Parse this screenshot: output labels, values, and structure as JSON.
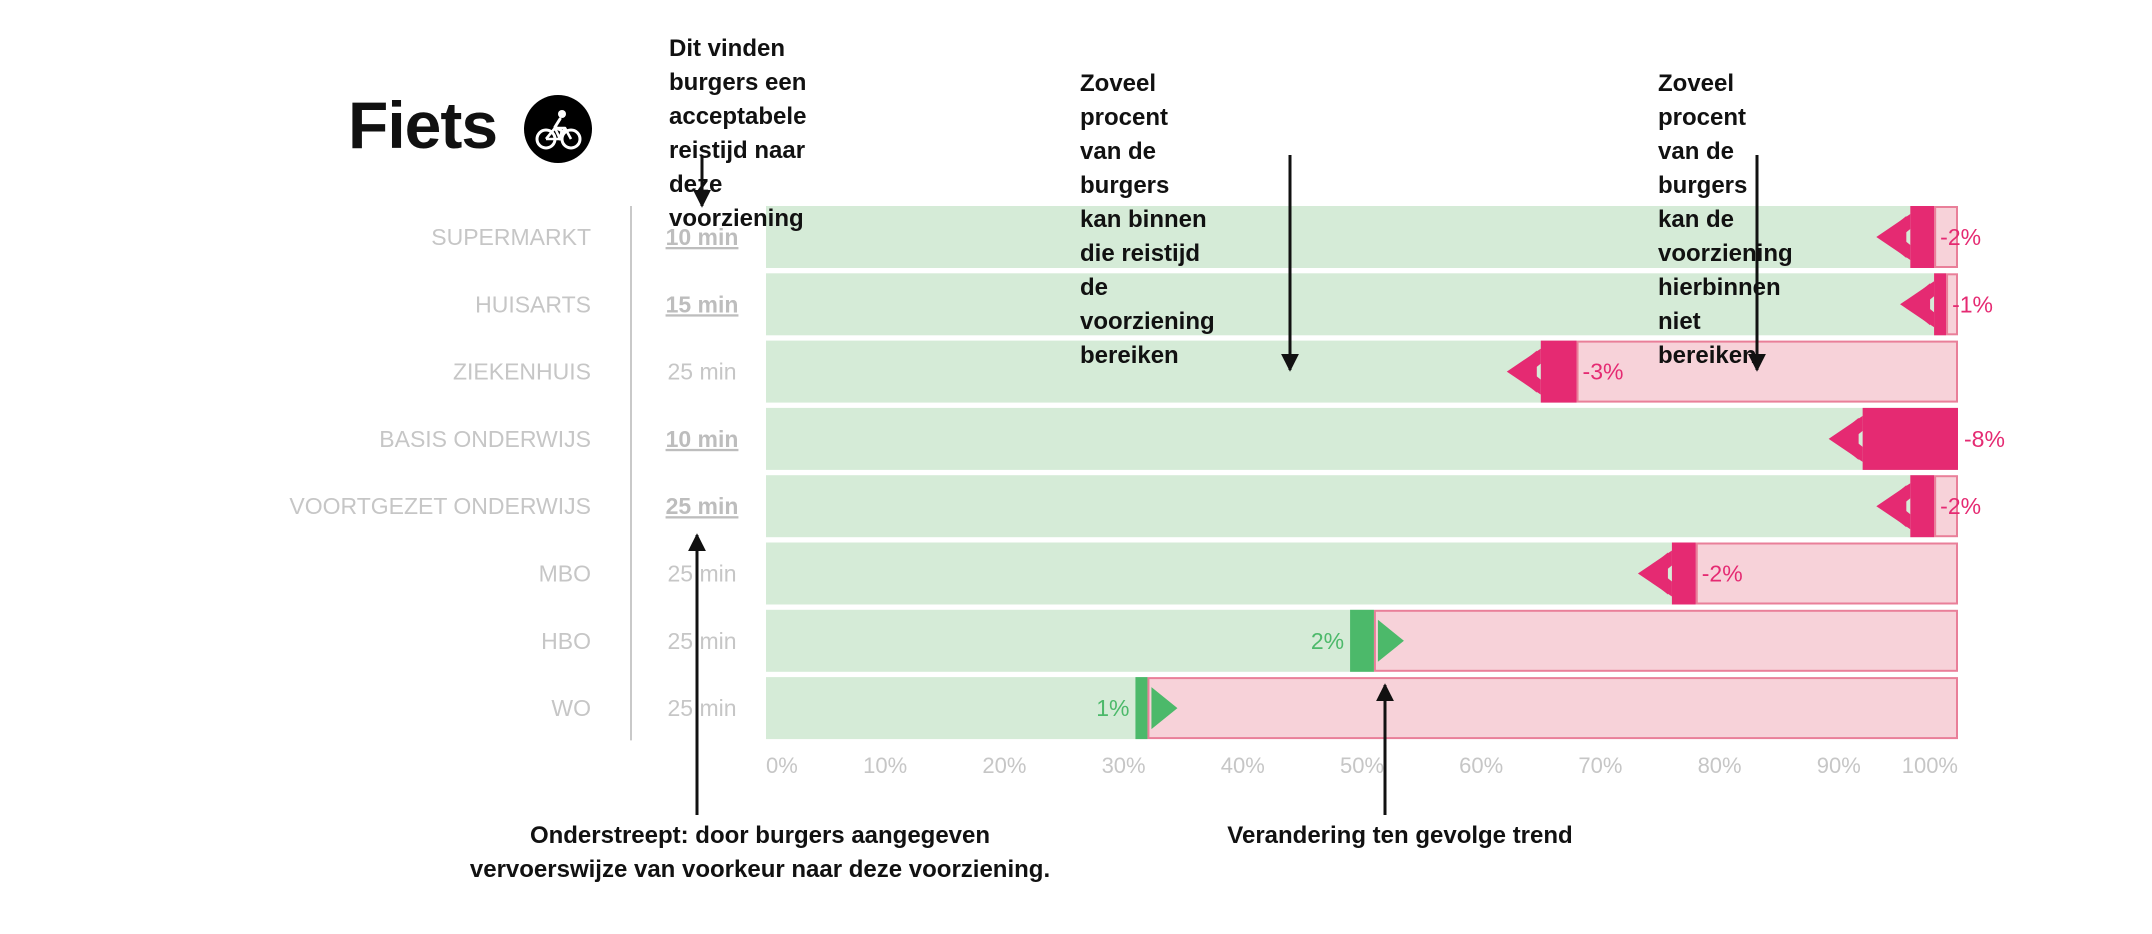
{
  "page": {
    "title": "Fiets",
    "mode_icon": "bicycle-icon"
  },
  "annotations": {
    "acceptable_time": "Dit vinden burgers een\nacceptabele reistijd naar\ndeze voorziening",
    "reach_within": "Zoveel procent van de burgers kan binnen\ndie reistijd de voorziening bereiken",
    "not_reach": "Zoveel procent van de burgers kan de\nvoorziening hierbinnen niet bereiken",
    "underlined": "Onderstreept: door burgers aangegeven\nvervoerswijze van voorkeur naar deze voorziening.",
    "trend": "Verandering ten gevolge trend"
  },
  "colors": {
    "reach": "#d5ebd7",
    "not_reach_fill": "#f7d2d9",
    "not_reach_border": "#e97f99",
    "negative": "#e52a72",
    "positive": "#4cb96a",
    "muted_label": "#c6c6c6",
    "annotation": "#111111"
  },
  "chart_data": {
    "type": "bar",
    "orientation": "horizontal",
    "stacked": true,
    "categories": [
      "SUPERMARKT",
      "HUISARTS",
      "ZIEKENHUIS",
      "BASIS ONDERWIJS",
      "VOORTGEZET ONDERWIJS",
      "MBO",
      "HBO",
      "WO"
    ],
    "travel_times": [
      "10 min",
      "15 min",
      "25 min",
      "10 min",
      "25 min",
      "25 min",
      "25 min",
      "25 min"
    ],
    "preferred_mode_underlined": [
      true,
      true,
      false,
      true,
      true,
      false,
      false,
      false
    ],
    "series": [
      {
        "values": [
          98,
          99,
          68,
          100,
          98,
          78,
          51,
          32
        ]
      },
      {
        "values": [
          2,
          1,
          32,
          0,
          2,
          22,
          49,
          68
        ]
      }
    ],
    "trend_change_labels": [
      "-2%",
      "-1%",
      "-3%",
      "-8%",
      "-2%",
      "-2%",
      "2%",
      "1%"
    ],
    "trend_change": [
      -2,
      -1,
      -3,
      -8,
      -2,
      -2,
      2,
      1
    ],
    "x_ticks": [
      "0%",
      "10%",
      "20%",
      "30%",
      "40%",
      "50%",
      "60%",
      "70%",
      "80%",
      "90%",
      "100%"
    ],
    "xlim": [
      0,
      100
    ],
    "legend": "none",
    "grid": false
  }
}
